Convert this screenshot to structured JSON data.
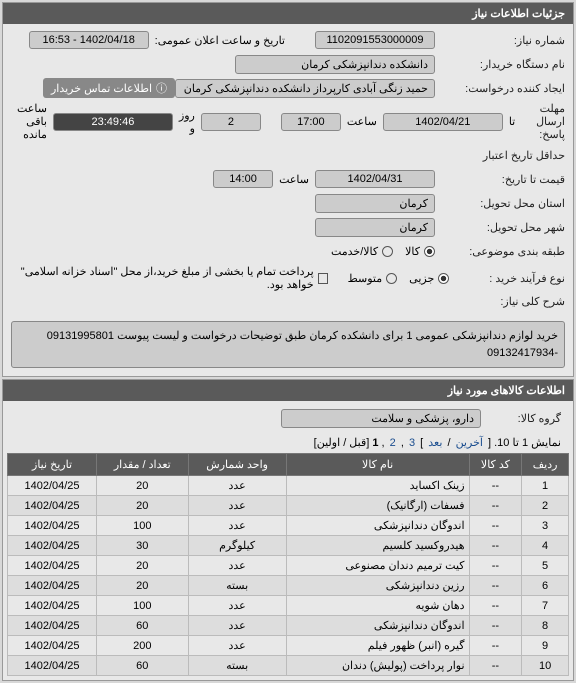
{
  "panels": {
    "details_title": "جزئیات اطلاعات نیاز",
    "goods_title": "اطلاعات کالاهای مورد نیاز"
  },
  "fields": {
    "need_no_label": "شماره نیاز:",
    "need_no": "1102091553000009",
    "announce_dt_label": "تاریخ و ساعت اعلان عمومی:",
    "announce_dt": "1402/04/18 - 16:53",
    "buyer_label": "نام دستگاه خریدار:",
    "buyer": "دانشکده دندانپزشکی کرمان",
    "creator_label": "ایجاد کننده درخواست:",
    "creator": "حمید زنگی آبادی کارپرداز دانشکده دندانپزشکی کرمان",
    "contact_btn": "اطلاعات تماس خریدار",
    "deadline_label": "مهلت ارسال پاسخ:",
    "deadline_tx": "تا",
    "deadline_date": "1402/04/21",
    "deadline_time_lbl": "ساعت",
    "deadline_time": "17:00",
    "remain_day_lbl": "روز و",
    "remain_days": "2",
    "remain_time": "23:49:46",
    "remain_suffix": "ساعت باقی مانده",
    "min_valid_label": "حداقل تاریخ اعتبار",
    "price_until_label": "قیمت تا تاریخ:",
    "price_date": "1402/04/31",
    "price_time": "14:00",
    "province_label": "استان محل تحویل:",
    "province": "کرمان",
    "city_label": "شهر محل تحویل:",
    "city": "کرمان",
    "category_label": "طبقه بندی موضوعی:",
    "cat_goods": "کالا",
    "cat_service": "کالا/خدمت",
    "process_label": "نوع فرآیند خرید :",
    "proc_partial": "جزیی",
    "proc_medium": "متوسط",
    "payment_note": "پرداخت تمام یا بخشی از مبلغ خرید،از محل \"اسناد خزانه اسلامی\" خواهد بود.",
    "desc_label": "شرح کلی نیاز:",
    "desc": "خرید لوازم دندانپزشکی عمومی 1 برای دانشکده کرمان طبق توضیحات درخواست و لیست پیوست 09131995801 -09132417934",
    "group_label": "گروه کالا:",
    "group_value": "دارو، پزشکی و سلامت"
  },
  "pager": {
    "text_a": "نمایش 1 تا 10. [",
    "last": "آخرین",
    "next": "بعد",
    "p3": "3",
    "p2": "2",
    "p1": "1",
    "text_b": "قبل / اولین]"
  },
  "table": {
    "headers": {
      "row": "ردیف",
      "code": "کد کالا",
      "name": "نام کالا",
      "unit": "واحد شمارش",
      "qty": "تعداد / مقدار",
      "date": "تاریخ نیاز"
    },
    "rows": [
      {
        "n": "1",
        "code": "--",
        "name": "زینک اکساید",
        "unit": "عدد",
        "qty": "20",
        "date": "1402/04/25"
      },
      {
        "n": "2",
        "code": "--",
        "name": "فسفات (ارگانیک)",
        "unit": "عدد",
        "qty": "20",
        "date": "1402/04/25"
      },
      {
        "n": "3",
        "code": "--",
        "name": "اندوگان دندانپزشکی",
        "unit": "عدد",
        "qty": "100",
        "date": "1402/04/25"
      },
      {
        "n": "4",
        "code": "--",
        "name": "هیدروکسید کلسیم",
        "unit": "کیلوگرم",
        "qty": "30",
        "date": "1402/04/25"
      },
      {
        "n": "5",
        "code": "--",
        "name": "کیت ترمیم دندان مصنوعی",
        "unit": "عدد",
        "qty": "20",
        "date": "1402/04/25"
      },
      {
        "n": "6",
        "code": "--",
        "name": "رزین دندانپزشکی",
        "unit": "بسته",
        "qty": "20",
        "date": "1402/04/25"
      },
      {
        "n": "7",
        "code": "--",
        "name": "دهان شویه",
        "unit": "عدد",
        "qty": "100",
        "date": "1402/04/25"
      },
      {
        "n": "8",
        "code": "--",
        "name": "اندوگان دندانپزشکی",
        "unit": "عدد",
        "qty": "60",
        "date": "1402/04/25"
      },
      {
        "n": "9",
        "code": "--",
        "name": "گیره (انبر) ظهور فیلم",
        "unit": "عدد",
        "qty": "200",
        "date": "1402/04/25"
      },
      {
        "n": "10",
        "code": "--",
        "name": "نوار پرداخت (پولیش) دندان",
        "unit": "بسته",
        "qty": "60",
        "date": "1402/04/25"
      }
    ]
  }
}
